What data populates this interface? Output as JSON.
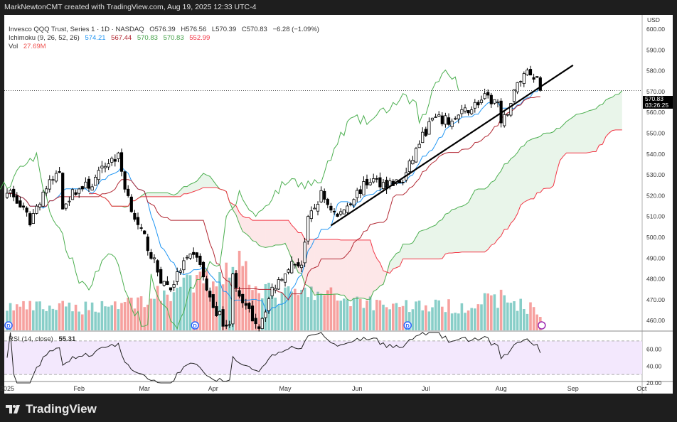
{
  "header": {
    "attribution": "MarkNewtonCMT created with TradingView.com, Aug 19, 2025 12:33 UTC-4"
  },
  "legend": {
    "symbol": "Invesco QQQ Trust, Series 1 · 1D · NASDAQ",
    "open": "O576.39",
    "high": "H576.56",
    "low": "L570.39",
    "close": "C570.83",
    "change": "−6.28 (−1.09%)",
    "ichimoku_label": "Ichimoku (9, 26, 52, 26)",
    "ichimoku_values": [
      "574.21",
      "567.44",
      "570.83",
      "570.83",
      "552.99"
    ],
    "vol_label": "Vol",
    "vol_value": "27.69M",
    "rsi_label": "RSI (14, close)",
    "rsi_value": "55.31"
  },
  "price_axis": {
    "currency": "USD",
    "last_price": "570.83",
    "countdown": "03:26:25"
  },
  "brand": "TradingView",
  "colors": {
    "up": "#ffffff",
    "down": "#000000",
    "tenkan": "#2196f3",
    "kijun": "#b22833",
    "span_a": "#4caf50",
    "span_b": "#f23645",
    "vol_up": "#26a69a",
    "vol_down": "#ef5350",
    "rsi_band": "#f3e8fd"
  },
  "chart_data": {
    "type": "candlestick",
    "symbol": "QQQ",
    "interval": "1D",
    "ylim": [
      455,
      605
    ],
    "yticks": [
      600,
      590,
      580,
      570,
      560,
      550,
      540,
      530,
      520,
      510,
      500,
      490,
      480,
      470,
      460
    ],
    "rsi_ticks": [
      60,
      40,
      20
    ],
    "rsi_bands": [
      70,
      30
    ],
    "xticks": [
      {
        "label": "2025",
        "date": "2025-01-02"
      },
      {
        "label": "Feb",
        "date": "2025-02-03"
      },
      {
        "label": "Mar",
        "date": "2025-03-03"
      },
      {
        "label": "Apr",
        "date": "2025-04-01"
      },
      {
        "label": "May",
        "date": "2025-05-01"
      },
      {
        "label": "Jun",
        "date": "2025-06-02"
      },
      {
        "label": "Jul",
        "date": "2025-07-01"
      },
      {
        "label": "Aug",
        "date": "2025-08-01"
      },
      {
        "label": "Sep",
        "date": "2025-09-02"
      },
      {
        "label": "Oct",
        "date": "2025-10-01"
      }
    ],
    "key_closes": [
      [
        "2025-01-02",
        524
      ],
      [
        "2025-01-08",
        515
      ],
      [
        "2025-01-13",
        508
      ],
      [
        "2025-01-17",
        522
      ],
      [
        "2025-01-24",
        532
      ],
      [
        "2025-01-27",
        516
      ],
      [
        "2025-01-31",
        523
      ],
      [
        "2025-02-07",
        526
      ],
      [
        "2025-02-14",
        537
      ],
      [
        "2025-02-19",
        539
      ],
      [
        "2025-02-21",
        525
      ],
      [
        "2025-02-27",
        505
      ],
      [
        "2025-03-03",
        500
      ],
      [
        "2025-03-10",
        480
      ],
      [
        "2025-03-13",
        476
      ],
      [
        "2025-03-19",
        488
      ],
      [
        "2025-03-25",
        492
      ],
      [
        "2025-03-31",
        470
      ],
      [
        "2025-04-04",
        460
      ],
      [
        "2025-04-08",
        457
      ],
      [
        "2025-04-09",
        485
      ],
      [
        "2025-04-11",
        470
      ],
      [
        "2025-04-21",
        458
      ],
      [
        "2025-04-25",
        475
      ],
      [
        "2025-05-02",
        487
      ],
      [
        "2025-05-08",
        488
      ],
      [
        "2025-05-12",
        508
      ],
      [
        "2025-05-16",
        521
      ],
      [
        "2025-05-23",
        510
      ],
      [
        "2025-05-30",
        520
      ],
      [
        "2025-06-06",
        528
      ],
      [
        "2025-06-13",
        526
      ],
      [
        "2025-06-20",
        527
      ],
      [
        "2025-06-27",
        546
      ],
      [
        "2025-07-03",
        557
      ],
      [
        "2025-07-11",
        556
      ],
      [
        "2025-07-18",
        562
      ],
      [
        "2025-07-25",
        567
      ],
      [
        "2025-07-31",
        565
      ],
      [
        "2025-08-01",
        553
      ],
      [
        "2025-08-08",
        574
      ],
      [
        "2025-08-13",
        581
      ],
      [
        "2025-08-18",
        577
      ],
      [
        "2025-08-19",
        570.83
      ]
    ],
    "key_volumes_millions": [
      [
        "2025-01-02",
        35
      ],
      [
        "2025-02-01",
        33
      ],
      [
        "2025-03-01",
        45
      ],
      [
        "2025-04-03",
        80
      ],
      [
        "2025-04-09",
        110
      ],
      [
        "2025-04-25",
        50
      ],
      [
        "2025-05-12",
        55
      ],
      [
        "2025-06-15",
        38
      ],
      [
        "2025-07-15",
        35
      ],
      [
        "2025-08-01",
        48
      ],
      [
        "2025-08-19",
        27.69
      ]
    ],
    "trendline": [
      [
        "2025-05-21",
        506
      ],
      [
        "2025-09-02",
        583
      ]
    ],
    "dividend_dates": [
      "2025-01-02",
      "2025-03-24",
      "2025-06-23"
    ]
  }
}
